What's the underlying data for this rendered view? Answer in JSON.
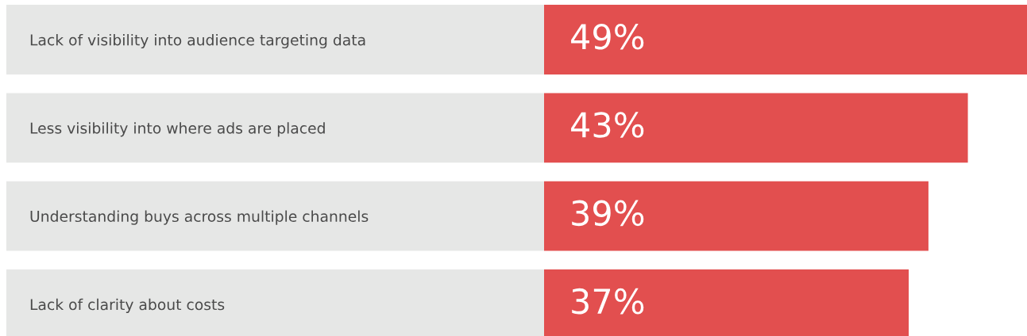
{
  "chart_data": {
    "type": "bar",
    "orientation": "horizontal",
    "categories": [
      "Lack of visibility into audience targeting data",
      "Less visibility into where ads are placed",
      "Understanding buys across multiple channels",
      "Lack of clarity about costs"
    ],
    "values": [
      49,
      43,
      39,
      37
    ],
    "value_labels": [
      "49%",
      "43%",
      "39%",
      "37%"
    ],
    "color": "#e24f4f",
    "grid": false,
    "legend": false
  }
}
